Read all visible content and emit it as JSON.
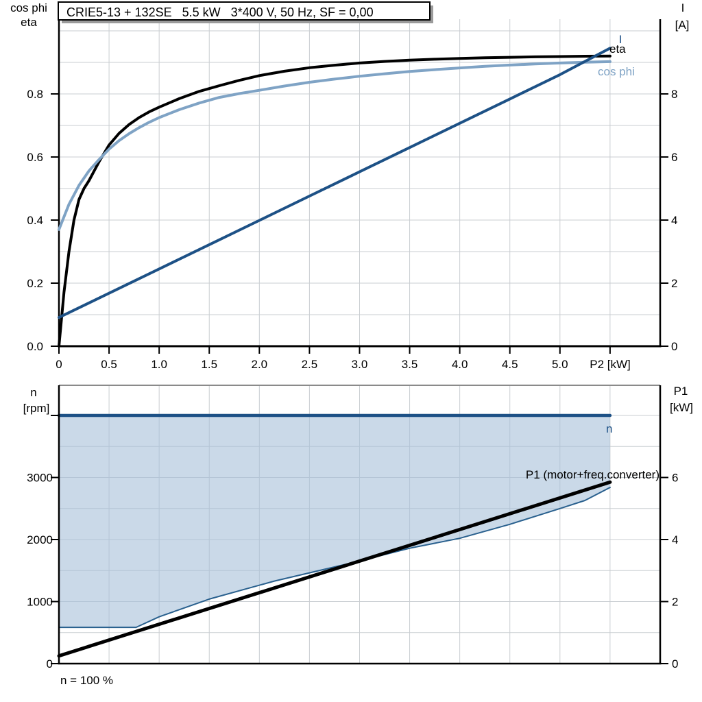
{
  "title_box": {
    "title": "CRIE5-13 + 132SE   5.5 kW   3*400 V, 50 Hz, SF = 0,00"
  },
  "top_chart": {
    "left_axis_title_line1": "cos phi",
    "left_axis_title_line2": "eta",
    "right_axis_title_line1": "I",
    "right_axis_title_line2": "[A]",
    "x_axis_label": "P2 [kW]",
    "curve_labels": {
      "current": "I",
      "efficiency": "eta",
      "power_factor": "cos phi"
    }
  },
  "bottom_chart": {
    "left_axis_title_line1": "n",
    "left_axis_title_line2": "[rpm]",
    "right_axis_title_line1": "P1",
    "right_axis_title_line2": "[kW]",
    "curve_labels": {
      "speed": "n",
      "input_power": "P1 (motor+freq.converter)"
    },
    "x_axis_note": "n = 100 %"
  },
  "colors": {
    "dark_blue": "#1d5186",
    "light_blue": "#7fa3c5",
    "boundary_blue": "#29608e",
    "area_fill": "rgba(167,192,216,0.6)",
    "grid": "#c9cdd1",
    "axis": "#000000",
    "top_border_gray": "#8a8a8a",
    "shadow_gray": "#9b9b9b"
  },
  "chart_data": [
    {
      "type": "line",
      "title": "CRIE5-13 + 132SE   5.5 kW   3*400 V, 50 Hz, SF = 0,00",
      "xlabel": "P2 [kW]",
      "x_range": [
        0,
        6
      ],
      "grid": true,
      "x_grid_step": 0.5,
      "y_left": {
        "label": "cos phi / eta",
        "range": [
          0,
          1.03
        ],
        "grid_step": 0.1
      },
      "y_right": {
        "label": "I [A]",
        "range": [
          0,
          10.3
        ]
      },
      "x_ticks": {
        "values": [
          0,
          0.5,
          1.0,
          1.5,
          2.0,
          2.5,
          3.0,
          3.5,
          4.0,
          4.5,
          5.0,
          5.5
        ],
        "labels": [
          "0",
          "0.5",
          "1.0",
          "1.5",
          "2.0",
          "2.5",
          "3.0",
          "3.5",
          "4.0",
          "4.5",
          "5.0",
          ""
        ]
      },
      "left_ticks": {
        "values": [
          0,
          0.2,
          0.4,
          0.6,
          0.8
        ],
        "labels": [
          "0.0",
          "0.2",
          "0.4",
          "0.6",
          "0.8"
        ]
      },
      "right_ticks": {
        "values": [
          0,
          2,
          4,
          6,
          8
        ],
        "labels": [
          "0",
          "2",
          "4",
          "6",
          "8"
        ]
      },
      "series": [
        {
          "name": "eta",
          "axis": "left",
          "color": "#000000",
          "width": 4,
          "x": [
            0,
            0.05,
            0.1,
            0.15,
            0.2,
            0.25,
            0.3,
            0.4,
            0.5,
            0.6,
            0.7,
            0.8,
            0.9,
            1.0,
            1.2,
            1.4,
            1.6,
            1.8,
            2.0,
            2.25,
            2.5,
            2.75,
            3.0,
            3.25,
            3.5,
            3.75,
            4.0,
            4.25,
            4.5,
            4.75,
            5.0,
            5.25,
            5.5
          ],
          "y": [
            0,
            0.17,
            0.3,
            0.4,
            0.465,
            0.5,
            0.525,
            0.585,
            0.638,
            0.675,
            0.703,
            0.725,
            0.743,
            0.758,
            0.785,
            0.808,
            0.826,
            0.843,
            0.858,
            0.872,
            0.883,
            0.891,
            0.898,
            0.903,
            0.907,
            0.91,
            0.9125,
            0.9145,
            0.916,
            0.9175,
            0.9185,
            0.9195,
            0.92
          ]
        },
        {
          "name": "cos phi",
          "axis": "left",
          "color": "#7fa3c5",
          "width": 4,
          "x": [
            0,
            0.1,
            0.2,
            0.3,
            0.4,
            0.5,
            0.6,
            0.7,
            0.8,
            0.9,
            1.0,
            1.2,
            1.4,
            1.6,
            1.8,
            2.0,
            2.25,
            2.5,
            2.75,
            3.0,
            3.25,
            3.5,
            3.75,
            4.0,
            4.25,
            4.5,
            4.75,
            5.0,
            5.25,
            5.5
          ],
          "y": [
            0.37,
            0.45,
            0.51,
            0.556,
            0.592,
            0.625,
            0.652,
            0.674,
            0.693,
            0.71,
            0.725,
            0.75,
            0.771,
            0.789,
            0.801,
            0.8115,
            0.825,
            0.837,
            0.847,
            0.856,
            0.864,
            0.871,
            0.877,
            0.8825,
            0.8875,
            0.8915,
            0.895,
            0.898,
            0.9005,
            0.9025
          ]
        },
        {
          "name": "I",
          "axis": "right",
          "color": "#1d5186",
          "width": 4,
          "x": [
            0,
            0.5,
            1.0,
            1.5,
            2.0,
            2.5,
            3.0,
            3.5,
            4.0,
            4.5,
            5.0,
            5.5
          ],
          "y": [
            0.91,
            1.68,
            2.45,
            3.22,
            3.99,
            4.76,
            5.53,
            6.3,
            7.07,
            7.84,
            8.61,
            9.45
          ]
        }
      ]
    },
    {
      "type": "area",
      "xlabel": "n = 100 %",
      "x_range": [
        0,
        6
      ],
      "grid": true,
      "x_grid_step": 0.5,
      "y_left": {
        "label": "n [rpm]",
        "range": [
          0,
          4490
        ],
        "grid_step": 500
      },
      "y_right": {
        "label": "P1 [kW]",
        "range": [
          0,
          8.97
        ]
      },
      "left_ticks": {
        "values": [
          0,
          1000,
          2000,
          3000,
          4000
        ],
        "labels": [
          "0",
          "1000",
          "2000",
          "3000",
          ""
        ]
      },
      "right_ticks": {
        "values": [
          0,
          2,
          4,
          6
        ],
        "labels": [
          "0",
          "2",
          "4",
          "6"
        ]
      },
      "series": [
        {
          "name": "n",
          "axis": "left",
          "color": "#1d5186",
          "width": 4.5,
          "x": [
            0,
            5.5
          ],
          "y": [
            4000,
            4000
          ]
        },
        {
          "name": "duty-range-lower-boundary",
          "axis": "left",
          "color": "#29608e",
          "width": 2,
          "x": [
            0,
            0.77,
            1.0,
            1.5,
            2.15,
            2.94,
            3.5,
            4.0,
            4.5,
            5.0,
            5.25,
            5.5
          ],
          "y": [
            585,
            585,
            755,
            1040,
            1330,
            1630,
            1860,
            2020,
            2245,
            2500,
            2630,
            2840
          ]
        },
        {
          "name": "P1 (motor+freq.converter)",
          "axis": "right",
          "color": "#000000",
          "width": 5,
          "x": [
            0,
            5.5
          ],
          "y": [
            0.25,
            5.85
          ]
        }
      ],
      "area_between": {
        "upper": "n",
        "lower": "duty-range-lower-boundary",
        "fill": "rgba(167,192,216,0.6)"
      }
    }
  ]
}
